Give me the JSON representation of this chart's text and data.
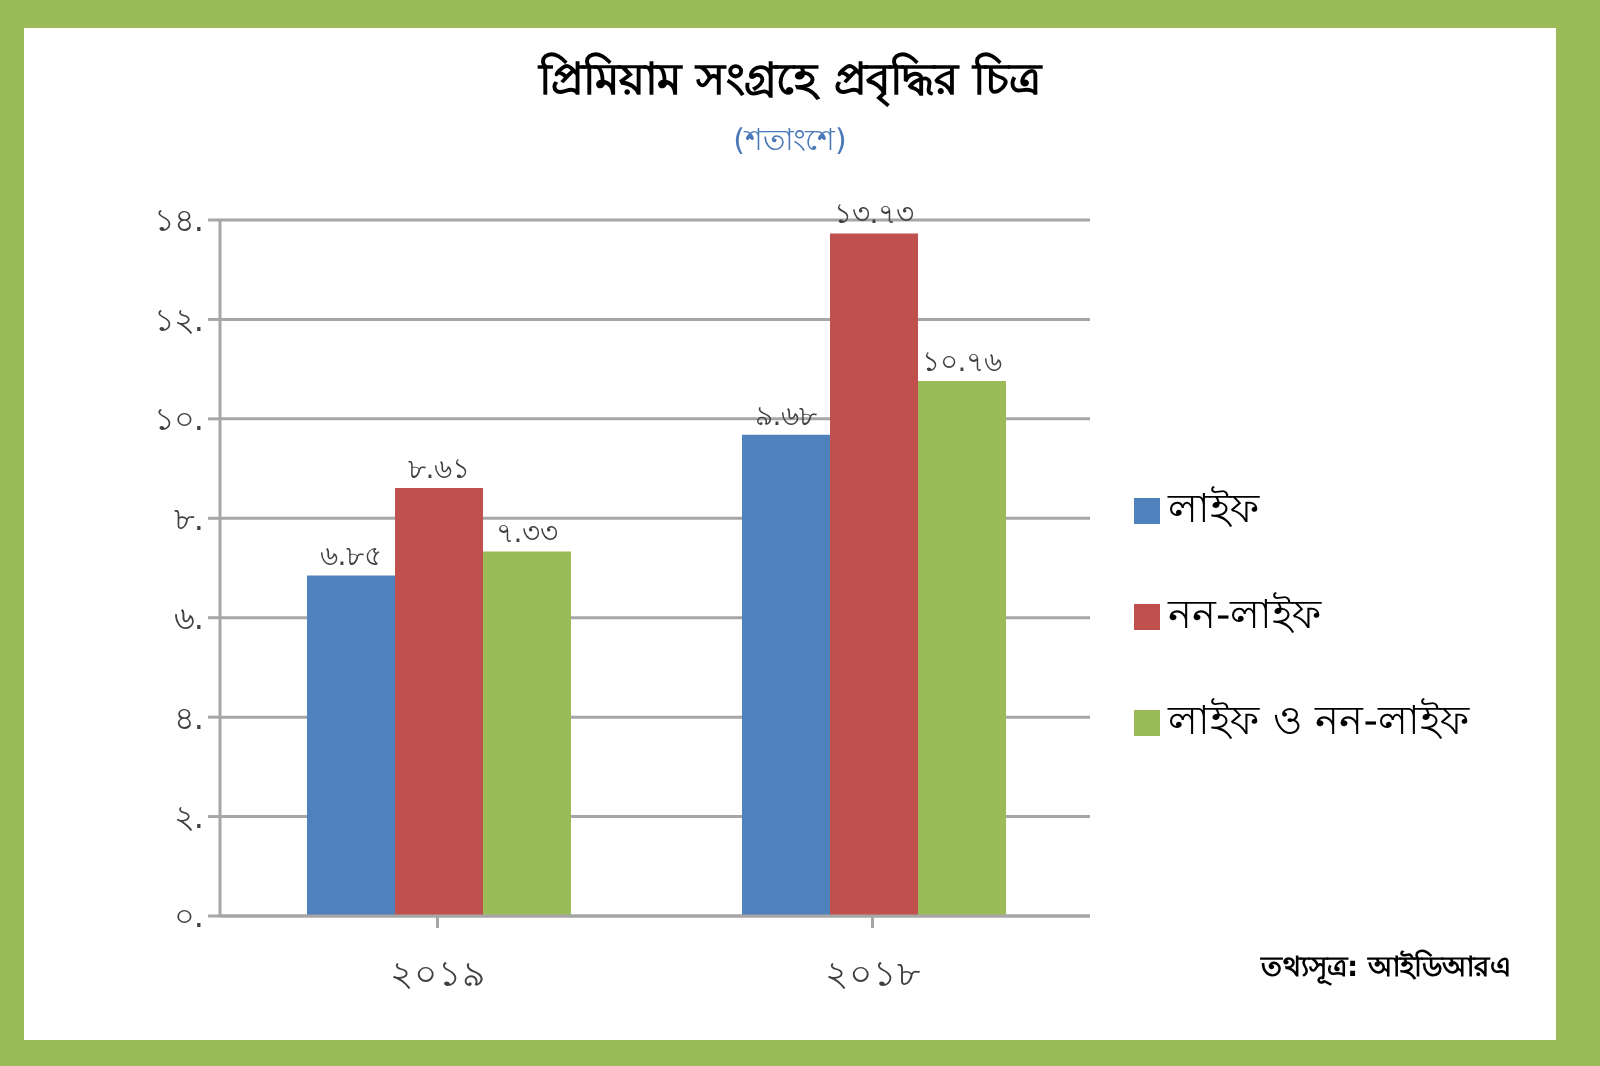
{
  "chart_data": {
    "type": "bar",
    "title": "প্রিমিয়াম সংগ্রহে প্রবৃদ্ধির চিত্র",
    "subtitle": "(শতাংশে)",
    "categories": [
      "২০১৯",
      "২০১৮"
    ],
    "series": [
      {
        "name": "লাইফ",
        "color": "#4f81bd",
        "values": [
          6.85,
          9.68
        ],
        "value_labels": [
          "৬.৮৫",
          "৯.৬৮"
        ]
      },
      {
        "name": "নন-লাইফ",
        "color": "#c0504d",
        "values": [
          8.61,
          13.73
        ],
        "value_labels": [
          "৮.৬১",
          "১৩.৭৩"
        ]
      },
      {
        "name": "লাইফ ও নন-লাইফ",
        "color": "#9bbb59",
        "values": [
          7.33,
          10.76
        ],
        "value_labels": [
          "৭.৩৩",
          "১০.৭৬"
        ]
      }
    ],
    "ylim": [
      0,
      14
    ],
    "yticks": [
      {
        "value": 0,
        "label": "০."
      },
      {
        "value": 2,
        "label": "২."
      },
      {
        "value": 4,
        "label": "৪."
      },
      {
        "value": 6,
        "label": "৬."
      },
      {
        "value": 8,
        "label": "৮."
      },
      {
        "value": 10,
        "label": "১০."
      },
      {
        "value": 12,
        "label": "১২."
      },
      {
        "value": 14,
        "label": "১৪."
      }
    ],
    "grid": "y",
    "legend": "right",
    "annotations": [
      "তথ্যসূত্র: আইডিআরএ"
    ]
  }
}
